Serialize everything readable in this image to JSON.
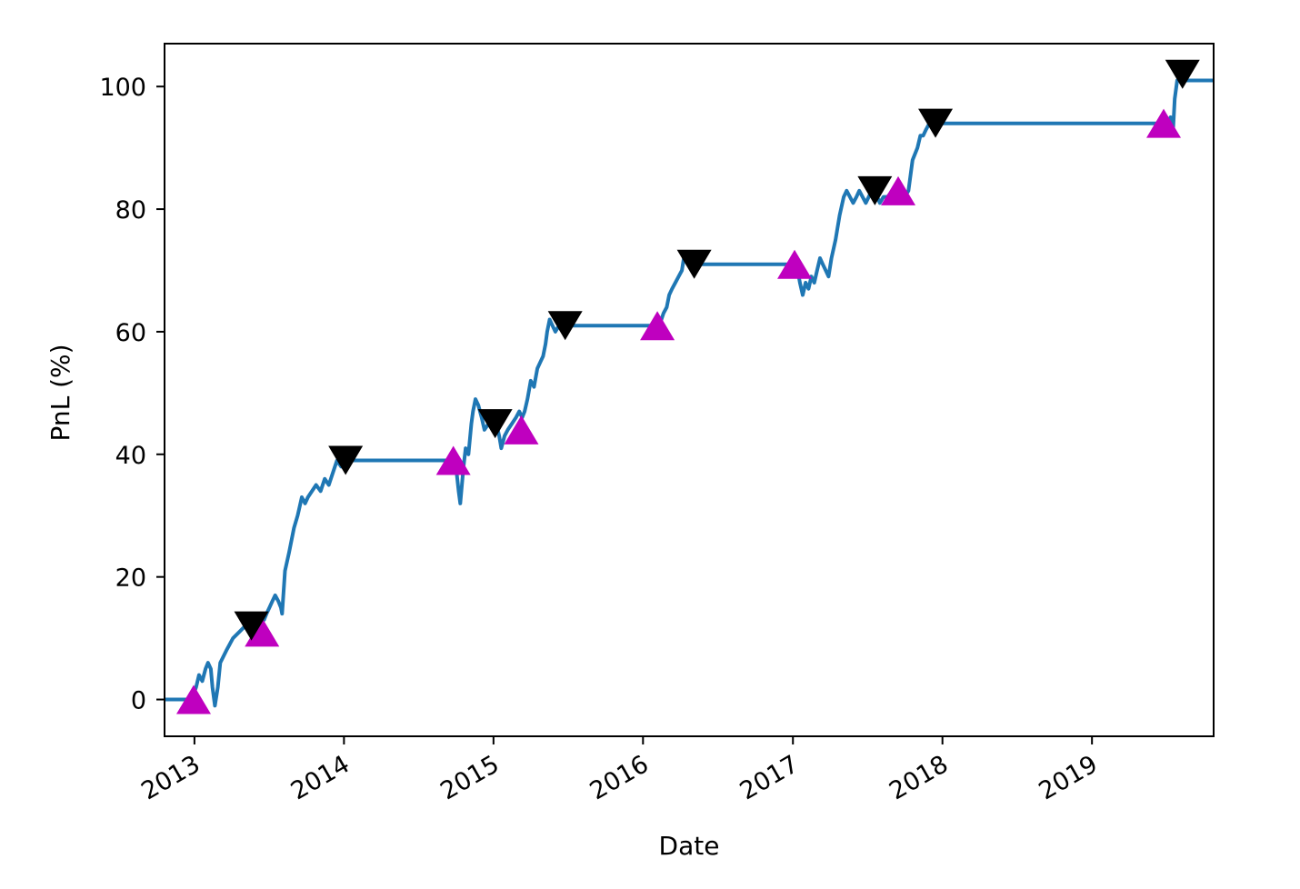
{
  "chart_data": {
    "type": "line",
    "title": "",
    "xlabel": "Date",
    "ylabel": "PnL (%)",
    "xlim": [
      "2012-10-20",
      "2019-10-25"
    ],
    "ylim": [
      -6,
      107
    ],
    "grid": false,
    "legend": "none",
    "colors": {
      "line": "#1f77b4",
      "buy_marker": "#bf00bf",
      "sell_marker": "#000000"
    },
    "x_ticks": [
      {
        "date": "2013-01-01",
        "label": "2013"
      },
      {
        "date": "2014-01-01",
        "label": "2014"
      },
      {
        "date": "2015-01-01",
        "label": "2015"
      },
      {
        "date": "2016-01-01",
        "label": "2016"
      },
      {
        "date": "2017-01-01",
        "label": "2017"
      },
      {
        "date": "2018-01-01",
        "label": "2018"
      },
      {
        "date": "2019-01-01",
        "label": "2019"
      }
    ],
    "y_ticks": [
      0,
      20,
      40,
      60,
      80,
      100
    ],
    "series": [
      {
        "x": [
          "2012-10-20",
          "2012-12-25",
          "2013-01-05",
          "2013-01-12",
          "2013-01-20",
          "2013-01-28",
          "2013-02-03",
          "2013-02-10",
          "2013-02-14",
          "2013-02-20",
          "2013-02-27",
          "2013-03-05",
          "2013-03-20",
          "2013-04-05",
          "2013-04-20",
          "2013-05-05",
          "2013-05-15",
          "2013-05-25",
          "2013-06-05",
          "2013-06-15",
          "2013-06-20",
          "2013-06-26",
          "2013-07-03",
          "2013-07-10",
          "2013-07-17",
          "2013-07-25",
          "2013-07-31",
          "2013-08-03",
          "2013-08-10",
          "2013-08-20",
          "2013-09-01",
          "2013-09-10",
          "2013-09-20",
          "2013-09-28",
          "2013-10-05",
          "2013-10-15",
          "2013-10-25",
          "2013-11-05",
          "2013-11-15",
          "2013-11-25",
          "2013-12-05",
          "2013-12-15",
          "2013-12-25",
          "2014-01-05",
          "2014-09-10",
          "2014-09-20",
          "2014-09-28",
          "2014-10-03",
          "2014-10-08",
          "2014-10-12",
          "2014-10-16",
          "2014-10-20",
          "2014-10-25",
          "2014-11-01",
          "2014-11-08",
          "2014-11-12",
          "2014-11-18",
          "2014-11-25",
          "2014-12-03",
          "2014-12-10",
          "2014-12-20",
          "2015-01-01",
          "2015-01-08",
          "2015-01-15",
          "2015-01-20",
          "2015-01-28",
          "2015-02-05",
          "2015-02-15",
          "2015-02-25",
          "2015-03-05",
          "2015-03-12",
          "2015-03-18",
          "2015-03-25",
          "2015-04-02",
          "2015-04-10",
          "2015-04-18",
          "2015-04-25",
          "2015-05-02",
          "2015-05-08",
          "2015-05-12",
          "2015-05-18",
          "2015-05-25",
          "2015-06-01",
          "2015-06-10",
          "2015-06-20",
          "2015-06-25",
          "2016-02-10",
          "2016-02-20",
          "2016-02-28",
          "2016-03-05",
          "2016-03-12",
          "2016-03-20",
          "2016-03-28",
          "2016-04-05",
          "2016-04-12",
          "2016-04-18",
          "2016-04-25",
          "2016-05-05",
          "2017-01-10",
          "2017-01-18",
          "2017-01-25",
          "2017-02-01",
          "2017-02-08",
          "2017-02-15",
          "2017-02-22",
          "2017-03-01",
          "2017-03-08",
          "2017-03-15",
          "2017-03-22",
          "2017-03-29",
          "2017-04-05",
          "2017-04-15",
          "2017-04-25",
          "2017-05-05",
          "2017-05-12",
          "2017-05-20",
          "2017-05-28",
          "2017-06-05",
          "2017-06-12",
          "2017-06-20",
          "2017-06-28",
          "2017-07-05",
          "2017-07-12",
          "2017-07-20",
          "2017-08-01",
          "2017-08-10",
          "2017-08-20",
          "2017-09-01",
          "2017-09-10",
          "2017-09-20",
          "2017-10-01",
          "2017-10-10",
          "2017-10-20",
          "2017-11-01",
          "2017-11-08",
          "2017-11-15",
          "2017-11-22",
          "2017-11-30",
          "2017-12-08",
          "2017-12-15",
          "2019-06-25",
          "2019-07-05",
          "2019-07-12",
          "2019-07-18",
          "2019-07-22",
          "2019-07-28",
          "2019-08-05",
          "2019-10-25"
        ],
        "y": [
          0,
          0,
          2,
          4,
          3,
          5,
          6,
          5,
          2,
          -1,
          2,
          6,
          8,
          10,
          11,
          12,
          11,
          12,
          13,
          14,
          13,
          14,
          15,
          16,
          17,
          16,
          15,
          14,
          21,
          24,
          28,
          30,
          33,
          32,
          33,
          34,
          35,
          34,
          36,
          35,
          37,
          39,
          38,
          39,
          39,
          38,
          40,
          37,
          34,
          32,
          35,
          38,
          41,
          40,
          45,
          47,
          49,
          48,
          46,
          44,
          45,
          47,
          45,
          43,
          41,
          43,
          44,
          45,
          46,
          47,
          46,
          47,
          49,
          52,
          51,
          54,
          55,
          56,
          58,
          60,
          62,
          61,
          60,
          61,
          61,
          61,
          61,
          63,
          64,
          66,
          67,
          68,
          69,
          70,
          73,
          72,
          71,
          71,
          71,
          68,
          66,
          68,
          67,
          69,
          68,
          70,
          72,
          71,
          70,
          69,
          72,
          75,
          79,
          82,
          83,
          82,
          81,
          82,
          83,
          82,
          81,
          82,
          83,
          83,
          81,
          82,
          82,
          83,
          81,
          83,
          82,
          83,
          88,
          90,
          92,
          92,
          93,
          94,
          94,
          94,
          94,
          94,
          95,
          93,
          98,
          101,
          101,
          101
        ]
      }
    ],
    "buy_markers": [
      {
        "x": "2012-12-30",
        "y": 0
      },
      {
        "x": "2013-06-15",
        "y": 11
      },
      {
        "x": "2014-09-25",
        "y": 39
      },
      {
        "x": "2015-03-10",
        "y": 44
      },
      {
        "x": "2016-02-05",
        "y": 61
      },
      {
        "x": "2017-01-05",
        "y": 71
      },
      {
        "x": "2017-09-15",
        "y": 83
      },
      {
        "x": "2019-06-25",
        "y": 94
      }
    ],
    "sell_markers": [
      {
        "x": "2013-05-20",
        "y": 12
      },
      {
        "x": "2014-01-05",
        "y": 39
      },
      {
        "x": "2015-01-05",
        "y": 45
      },
      {
        "x": "2015-06-25",
        "y": 61
      },
      {
        "x": "2016-05-05",
        "y": 71
      },
      {
        "x": "2017-07-20",
        "y": 83
      },
      {
        "x": "2017-12-15",
        "y": 94
      },
      {
        "x": "2019-08-10",
        "y": 102
      }
    ]
  }
}
